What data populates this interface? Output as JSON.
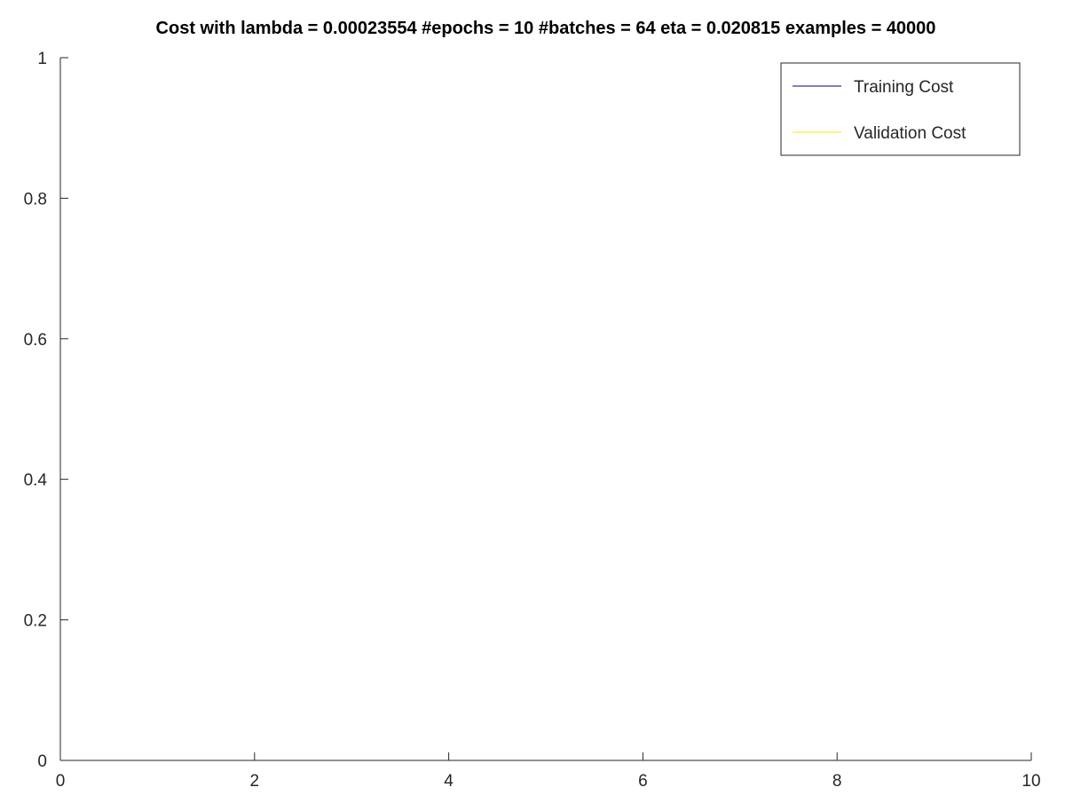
{
  "chart_data": {
    "type": "line",
    "title": "Cost with lambda = 0.00023554 #epochs = 10 #batches = 64 eta = 0.020815 examples = 40000",
    "xlabel": "",
    "ylabel": "",
    "xlim": [
      0,
      10
    ],
    "ylim": [
      0,
      1
    ],
    "x_ticks": [
      0,
      2,
      4,
      6,
      8,
      10
    ],
    "x_tick_labels": [
      "0",
      "2",
      "4",
      "6",
      "8",
      "10"
    ],
    "y_ticks": [
      0,
      0.2,
      0.4,
      0.6,
      0.8,
      1
    ],
    "y_tick_labels": [
      "0",
      "0.2",
      "0.4",
      "0.6",
      "0.8",
      "1"
    ],
    "grid": false,
    "legend_position": "top-right",
    "series": [
      {
        "name": "Training Cost",
        "color": "#00008b",
        "x": [],
        "y": []
      },
      {
        "name": "Validation Cost",
        "color": "#ffea00",
        "x": [],
        "y": []
      }
    ]
  }
}
